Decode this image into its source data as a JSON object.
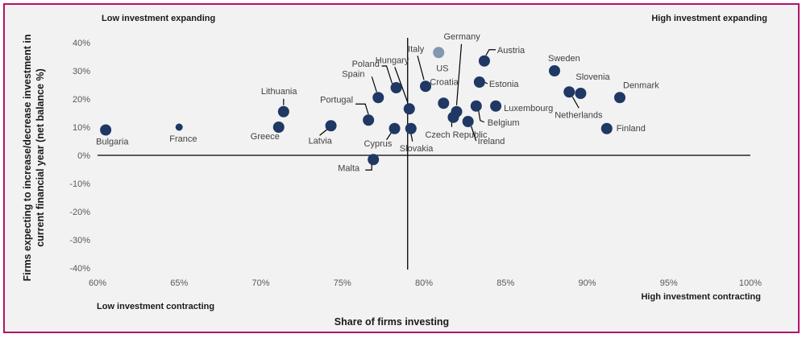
{
  "chart_data": {
    "type": "scatter",
    "xlabel": "Share of firms investing",
    "ylabel": [
      "Firms expecting to increase/decrease investment in",
      "current financial year  (net balance %)"
    ],
    "xlim": [
      60,
      100
    ],
    "ylim": [
      -40,
      40
    ],
    "x_ticks": [
      "60%",
      "65%",
      "70%",
      "75%",
      "80%",
      "85%",
      "90%",
      "95%",
      "100%"
    ],
    "y_ticks": [
      "40%",
      "30%",
      "20%",
      "10%",
      "0%",
      "-10%",
      "-20%",
      "-30%",
      "-40%"
    ],
    "quadrant_labels": {
      "top_left": "Low investment expanding",
      "top_right": "High investment expanding",
      "bottom_left": "Low investment contracting",
      "bottom_right": "High investment contracting"
    },
    "reference_x": 79,
    "colors": {
      "point": "#1f3864",
      "highlight": "#8497b0",
      "frame": "#b3126b",
      "background": "#f2f2f2"
    },
    "points": [
      {
        "name": "Bulgaria",
        "x": 60.5,
        "y": 9
      },
      {
        "name": "France",
        "x": 65,
        "y": 10
      },
      {
        "name": "Greece",
        "x": 71.1,
        "y": 10
      },
      {
        "name": "Lithuania",
        "x": 71.4,
        "y": 15.5
      },
      {
        "name": "Latvia",
        "x": 74.3,
        "y": 10.5
      },
      {
        "name": "Portugal",
        "x": 76.6,
        "y": 12.5
      },
      {
        "name": "Spain",
        "x": 77.2,
        "y": 20.5
      },
      {
        "name": "Malta",
        "x": 76.9,
        "y": -1.5
      },
      {
        "name": "Cyprus",
        "x": 78.2,
        "y": 9.5
      },
      {
        "name": "Poland",
        "x": 78.3,
        "y": 24
      },
      {
        "name": "Hungary",
        "x": 79.1,
        "y": 16.5
      },
      {
        "name": "Slovakia",
        "x": 79.2,
        "y": 9.5
      },
      {
        "name": "Italy",
        "x": 80.1,
        "y": 24.5
      },
      {
        "name": "US",
        "x": 80.9,
        "y": 36.5,
        "highlight": true
      },
      {
        "name": "Croatia",
        "x": 81.2,
        "y": 18.5
      },
      {
        "name": "Germany",
        "x": 82.0,
        "y": 15.5
      },
      {
        "name": "Czech Republic",
        "x": 81.8,
        "y": 13.5
      },
      {
        "name": "Ireland",
        "x": 82.7,
        "y": 12
      },
      {
        "name": "Belgium",
        "x": 83.2,
        "y": 17.5
      },
      {
        "name": "Estonia",
        "x": 83.4,
        "y": 26
      },
      {
        "name": "Austria",
        "x": 83.7,
        "y": 33.5
      },
      {
        "name": "Luxembourg",
        "x": 84.4,
        "y": 17.5
      },
      {
        "name": "Sweden",
        "x": 88.0,
        "y": 30
      },
      {
        "name": "Netherlands",
        "x": 88.9,
        "y": 22.5
      },
      {
        "name": "Slovenia",
        "x": 89.6,
        "y": 22
      },
      {
        "name": "Denmark",
        "x": 92.0,
        "y": 20.5
      },
      {
        "name": "Finland",
        "x": 91.2,
        "y": 9.5
      }
    ]
  }
}
